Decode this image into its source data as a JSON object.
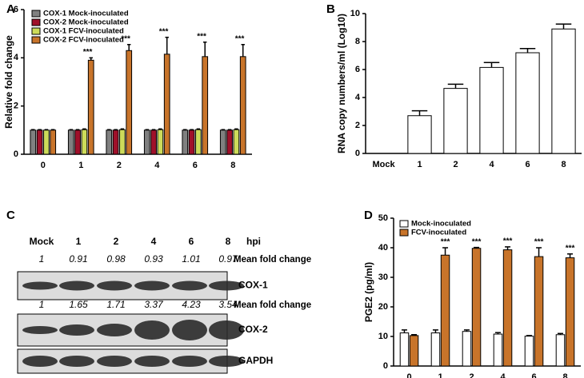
{
  "chart_data": [
    {
      "type": "bar",
      "panel": "A",
      "ylabel": "Relative fold change",
      "categories": [
        "0",
        "1",
        "2",
        "4",
        "6",
        "8"
      ],
      "series": [
        {
          "name": "COX-1 Mock-inoculated",
          "color": "#808080",
          "values": [
            1,
            1,
            1,
            1,
            1,
            1
          ],
          "errors": [
            0.02,
            0.02,
            0.02,
            0.02,
            0.02,
            0.02
          ]
        },
        {
          "name": "COX-2 Mock-inoculated",
          "color": "#a0102a",
          "values": [
            1,
            1,
            1,
            1,
            1,
            1
          ],
          "errors": [
            0.02,
            0.02,
            0.02,
            0.02,
            0.02,
            0.02
          ]
        },
        {
          "name": "COX-1 FCV-inoculated",
          "color": "#cddc5a",
          "values": [
            1,
            1.02,
            1.02,
            1.02,
            1.02,
            1.02
          ],
          "errors": [
            0.02,
            0.03,
            0.03,
            0.03,
            0.03,
            0.03
          ]
        },
        {
          "name": "COX-2 FCV-inoculated",
          "color": "#c8742a",
          "values": [
            1,
            3.9,
            4.3,
            4.15,
            4.05,
            4.05
          ],
          "errors": [
            0.02,
            0.1,
            0.25,
            0.7,
            0.6,
            0.5
          ]
        }
      ],
      "annotations": [
        null,
        "***",
        "***",
        "***",
        "***",
        "***"
      ],
      "ylim": [
        0,
        6
      ],
      "yticks": [
        0,
        2,
        4,
        6
      ],
      "legend": "upper left"
    },
    {
      "type": "bar",
      "panel": "B",
      "ylabel": "RNA copy numbers/ml (Log10)",
      "categories": [
        "Mock",
        "1",
        "2",
        "4",
        "6",
        "8"
      ],
      "values": [
        0,
        2.7,
        4.65,
        6.15,
        7.2,
        8.9
      ],
      "errors": [
        0,
        0.35,
        0.3,
        0.35,
        0.3,
        0.35
      ],
      "color": "#ffffff",
      "ylim": [
        0,
        10
      ],
      "yticks": [
        0,
        2,
        4,
        6,
        8,
        10
      ]
    },
    {
      "type": "bar",
      "panel": "D",
      "ylabel": "PGE2 (pg/ml)",
      "categories": [
        "0",
        "1",
        "2",
        "4",
        "6",
        "8"
      ],
      "series": [
        {
          "name": "Mock-inoculated",
          "color": "#ffffff",
          "values": [
            11.2,
            11.2,
            11.7,
            10.8,
            10.1,
            10.6
          ],
          "errors": [
            1,
            1,
            0.5,
            0.5,
            0.2,
            0.4
          ]
        },
        {
          "name": "FCV-inoculated",
          "color": "#c8742a",
          "values": [
            10.3,
            37.5,
            39.8,
            39.3,
            37,
            36.6
          ],
          "errors": [
            0.3,
            2.5,
            0.3,
            1,
            3,
            1.3
          ]
        }
      ],
      "annotations": [
        null,
        "***",
        "***",
        "***",
        "***",
        "***"
      ],
      "ylim": [
        0,
        50
      ],
      "yticks": [
        0,
        10,
        20,
        30,
        40,
        50
      ],
      "legend": "upper left"
    }
  ],
  "blot": {
    "panel": "C",
    "lanes": [
      "Mock",
      "1",
      "2",
      "4",
      "6",
      "8"
    ],
    "unit": "hpi",
    "rows": [
      {
        "fold_changes": [
          1,
          0.91,
          0.98,
          0.93,
          1.01,
          0.97
        ],
        "fold_label": "Mean fold change",
        "band": "COX-1"
      },
      {
        "fold_changes": [
          1,
          1.65,
          1.71,
          3.37,
          4.23,
          3.54
        ],
        "fold_label": "Mean fold change",
        "band": "COX-2"
      },
      {
        "band": "GAPDH"
      }
    ]
  }
}
